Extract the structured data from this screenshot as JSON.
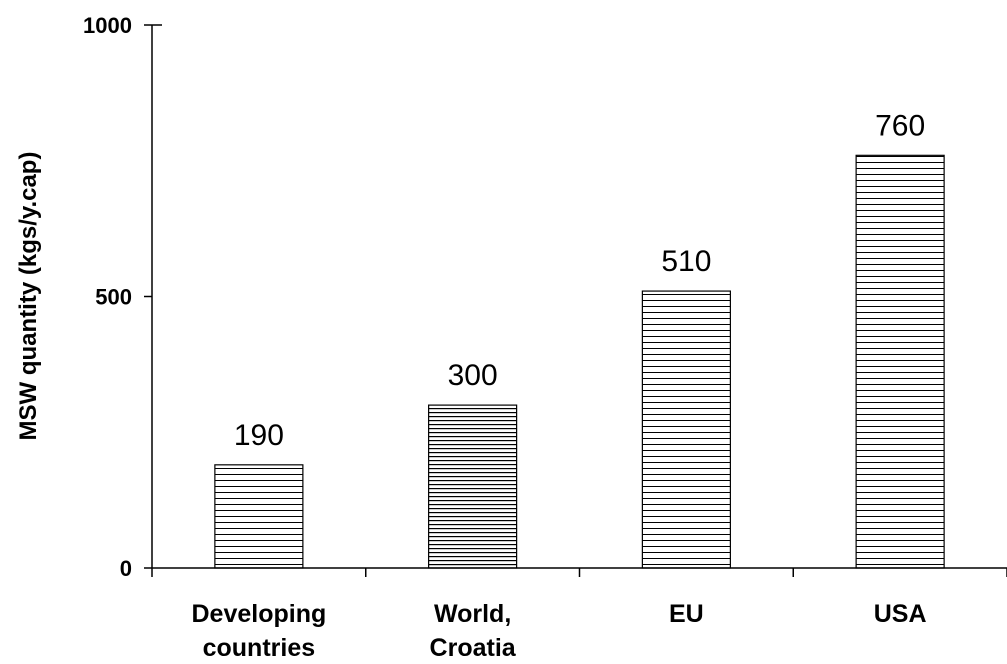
{
  "chart_data": {
    "type": "bar",
    "title": "",
    "xlabel": "",
    "ylabel": "MSW quantity (kgs/y.cap)",
    "ylim": [
      0,
      1000
    ],
    "yticks": [
      0,
      500,
      1000
    ],
    "grid": false,
    "legend": "none",
    "categories": [
      [
        "Developing",
        "countries"
      ],
      [
        "World,",
        "Croatia"
      ],
      [
        "EU"
      ],
      [
        "USA"
      ]
    ],
    "values": [
      190,
      300,
      510,
      760
    ],
    "data_labels": [
      "190",
      "300",
      "510",
      "760"
    ],
    "colors": {
      "bar_fill": "#ffffff",
      "hatch": "#000000",
      "axis": "#000000"
    }
  }
}
